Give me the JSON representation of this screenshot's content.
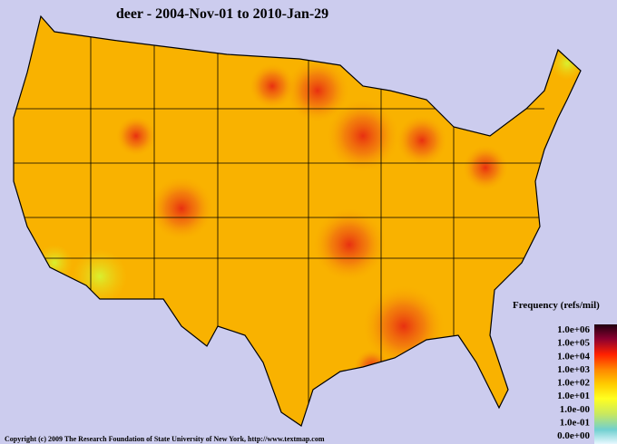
{
  "title": "deer - 2004-Nov-01 to 2010-Jan-29",
  "legend": {
    "title": "Frequency (refs/mil)",
    "labels": [
      "1.0e+06",
      "1.0e+05",
      "1.0e+04",
      "1.0e+03",
      "1.0e+02",
      "1.0e+01",
      "1.0e-00",
      "1.0e-01",
      "0.0e+00"
    ]
  },
  "copyright": "Copyright (c) 2009 The Research Foundation of State University of New York, http://www.textmap.com"
}
